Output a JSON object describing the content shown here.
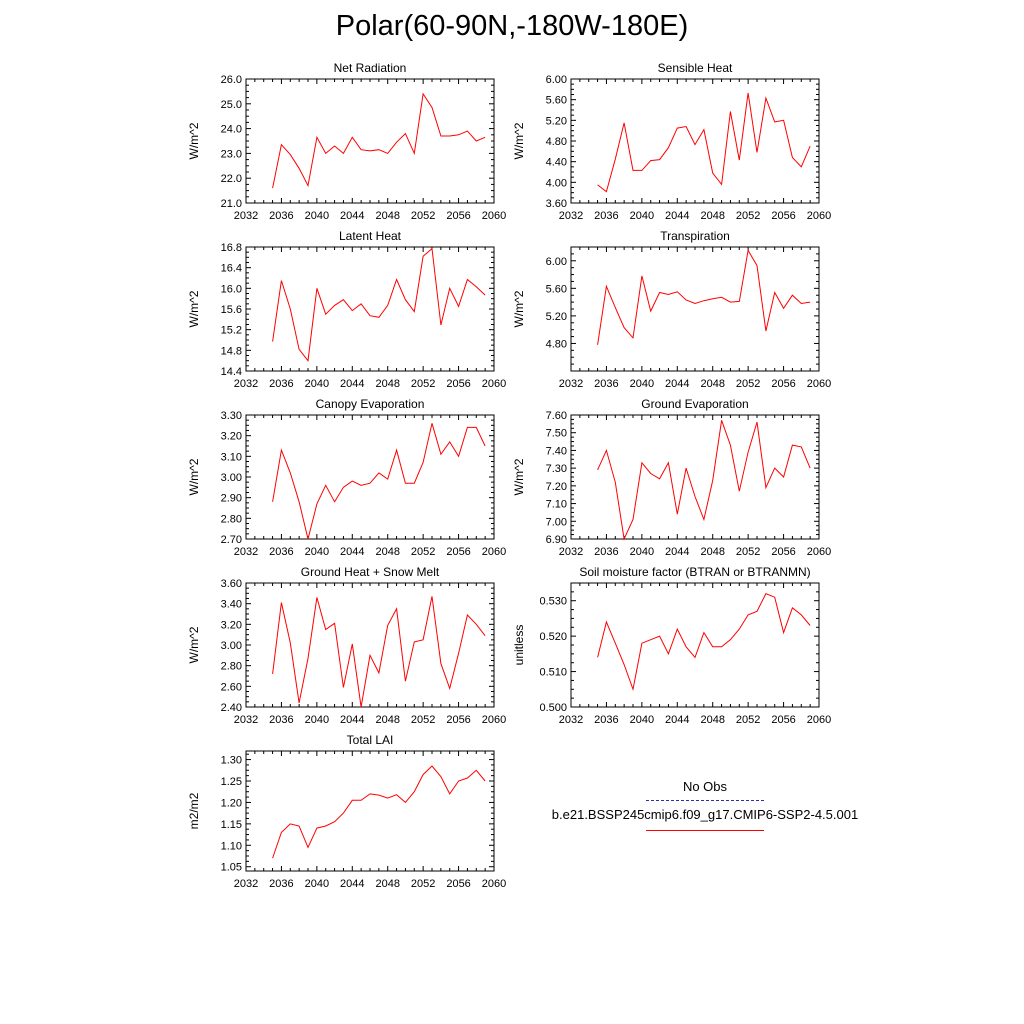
{
  "figure_title": "Polar(60-90N,-180W-180E)",
  "legend": {
    "obs_label": "No Obs",
    "obs_color": "#2b2bb8",
    "run_label": "b.e21.BSSP245cmip6.f09_g17.CMIP6-SSP2-4.5.001",
    "run_color": "#ff0000"
  },
  "chart_data": [
    {
      "type": "line",
      "title": "Net Radiation",
      "ylabel": "W/m^2",
      "xlim": [
        2032,
        2060
      ],
      "ylim": [
        21.0,
        26.0
      ],
      "xticks": [
        "2032",
        "2036",
        "2040",
        "2044",
        "2048",
        "2052",
        "2056",
        "2060"
      ],
      "yticks": [
        "21.0",
        "22.0",
        "23.0",
        "24.0",
        "25.0",
        "26.0"
      ],
      "x": [
        2035,
        2036,
        2037,
        2038,
        2039,
        2040,
        2041,
        2042,
        2043,
        2044,
        2045,
        2046,
        2047,
        2048,
        2049,
        2050,
        2051,
        2052,
        2053,
        2054,
        2055,
        2056,
        2057,
        2058,
        2059
      ],
      "series": [
        {
          "values": [
            21.6,
            23.35,
            22.95,
            22.4,
            21.7,
            23.65,
            23.0,
            23.3,
            23.0,
            23.65,
            23.15,
            23.1,
            23.15,
            23.0,
            23.45,
            23.8,
            23.0,
            25.4,
            24.85,
            23.7,
            23.7,
            23.75,
            23.9,
            23.5,
            23.65
          ]
        }
      ]
    },
    {
      "type": "line",
      "title": "Sensible Heat",
      "ylabel": "W/m^2",
      "xlim": [
        2032,
        2060
      ],
      "ylim": [
        3.6,
        6.0
      ],
      "xticks": [
        "2032",
        "2036",
        "2040",
        "2044",
        "2048",
        "2052",
        "2056",
        "2060"
      ],
      "yticks": [
        "3.60",
        "4.00",
        "4.40",
        "4.80",
        "5.20",
        "5.60",
        "6.00"
      ],
      "x": [
        2035,
        2036,
        2037,
        2038,
        2039,
        2040,
        2041,
        2042,
        2043,
        2044,
        2045,
        2046,
        2047,
        2048,
        2049,
        2050,
        2051,
        2052,
        2053,
        2054,
        2055,
        2056,
        2057,
        2058,
        2059
      ],
      "series": [
        {
          "values": [
            3.95,
            3.82,
            4.45,
            5.15,
            4.23,
            4.23,
            4.42,
            4.44,
            4.67,
            5.05,
            5.08,
            4.73,
            5.02,
            4.18,
            3.96,
            5.37,
            4.43,
            5.73,
            4.58,
            5.63,
            5.17,
            5.2,
            4.48,
            4.3,
            4.7
          ]
        }
      ]
    },
    {
      "type": "line",
      "title": "Latent Heat",
      "ylabel": "W/m^2",
      "xlim": [
        2032,
        2060
      ],
      "ylim": [
        14.4,
        16.8
      ],
      "xticks": [
        "2032",
        "2036",
        "2040",
        "2044",
        "2048",
        "2052",
        "2056",
        "2060"
      ],
      "yticks": [
        "14.4",
        "14.8",
        "15.2",
        "15.6",
        "16.0",
        "16.4",
        "16.8"
      ],
      "x": [
        2035,
        2036,
        2037,
        2038,
        2039,
        2040,
        2041,
        2042,
        2043,
        2044,
        2045,
        2046,
        2047,
        2048,
        2049,
        2050,
        2051,
        2052,
        2053,
        2054,
        2055,
        2056,
        2057,
        2058,
        2059
      ],
      "series": [
        {
          "values": [
            14.97,
            16.15,
            15.6,
            14.82,
            14.6,
            16.0,
            15.5,
            15.67,
            15.78,
            15.57,
            15.7,
            15.47,
            15.44,
            15.67,
            16.17,
            15.78,
            15.55,
            16.62,
            16.77,
            15.29,
            16.0,
            15.65,
            16.17,
            16.03,
            15.87
          ]
        }
      ]
    },
    {
      "type": "line",
      "title": "Transpiration",
      "ylabel": "W/m^2",
      "xlim": [
        2032,
        2060
      ],
      "ylim": [
        4.4,
        6.2
      ],
      "xticks": [
        "2032",
        "2036",
        "2040",
        "2044",
        "2048",
        "2052",
        "2056",
        "2060"
      ],
      "yticks": [
        "4.80",
        "5.20",
        "5.60",
        "6.00"
      ],
      "x": [
        2035,
        2036,
        2037,
        2038,
        2039,
        2040,
        2041,
        2042,
        2043,
        2044,
        2045,
        2046,
        2047,
        2048,
        2049,
        2050,
        2051,
        2052,
        2053,
        2054,
        2055,
        2056,
        2057,
        2058,
        2059
      ],
      "series": [
        {
          "values": [
            4.78,
            5.63,
            5.32,
            5.03,
            4.88,
            5.78,
            5.27,
            5.54,
            5.51,
            5.55,
            5.43,
            5.38,
            5.42,
            5.45,
            5.47,
            5.4,
            5.41,
            6.15,
            5.93,
            4.98,
            5.54,
            5.31,
            5.5,
            5.38,
            5.4
          ]
        }
      ]
    },
    {
      "type": "line",
      "title": "Canopy Evaporation",
      "ylabel": "W/m^2",
      "xlim": [
        2032,
        2060
      ],
      "ylim": [
        2.7,
        3.3
      ],
      "xticks": [
        "2032",
        "2036",
        "2040",
        "2044",
        "2048",
        "2052",
        "2056",
        "2060"
      ],
      "yticks": [
        "2.70",
        "2.80",
        "2.90",
        "3.00",
        "3.10",
        "3.20",
        "3.30"
      ],
      "x": [
        2035,
        2036,
        2037,
        2038,
        2039,
        2040,
        2041,
        2042,
        2043,
        2044,
        2045,
        2046,
        2047,
        2048,
        2049,
        2050,
        2051,
        2052,
        2053,
        2054,
        2055,
        2056,
        2057,
        2058,
        2059
      ],
      "series": [
        {
          "values": [
            2.88,
            3.13,
            3.02,
            2.88,
            2.7,
            2.87,
            2.96,
            2.88,
            2.95,
            2.98,
            2.96,
            2.97,
            3.02,
            2.99,
            3.13,
            2.97,
            2.97,
            3.07,
            3.26,
            3.11,
            3.17,
            3.1,
            3.24,
            3.24,
            3.15
          ]
        }
      ]
    },
    {
      "type": "line",
      "title": "Ground Evaporation",
      "ylabel": "W/m^2",
      "xlim": [
        2032,
        2060
      ],
      "ylim": [
        6.9,
        7.6
      ],
      "xticks": [
        "2032",
        "2036",
        "2040",
        "2044",
        "2048",
        "2052",
        "2056",
        "2060"
      ],
      "yticks": [
        "6.90",
        "7.00",
        "7.10",
        "7.20",
        "7.30",
        "7.40",
        "7.50",
        "7.60"
      ],
      "x": [
        2035,
        2036,
        2037,
        2038,
        2039,
        2040,
        2041,
        2042,
        2043,
        2044,
        2045,
        2046,
        2047,
        2048,
        2049,
        2050,
        2051,
        2052,
        2053,
        2054,
        2055,
        2056,
        2057,
        2058,
        2059
      ],
      "series": [
        {
          "values": [
            7.29,
            7.4,
            7.22,
            6.9,
            7.01,
            7.33,
            7.27,
            7.24,
            7.33,
            7.04,
            7.3,
            7.14,
            7.01,
            7.23,
            7.57,
            7.43,
            7.17,
            7.39,
            7.56,
            7.19,
            7.3,
            7.25,
            7.43,
            7.42,
            7.3
          ]
        }
      ]
    },
    {
      "type": "line",
      "title": "Ground Heat + Snow Melt",
      "ylabel": "W/m^2",
      "xlim": [
        2032,
        2060
      ],
      "ylim": [
        2.4,
        3.6
      ],
      "xticks": [
        "2032",
        "2036",
        "2040",
        "2044",
        "2048",
        "2052",
        "2056",
        "2060"
      ],
      "yticks": [
        "2.40",
        "2.60",
        "2.80",
        "3.00",
        "3.20",
        "3.40",
        "3.60"
      ],
      "x": [
        2035,
        2036,
        2037,
        2038,
        2039,
        2040,
        2041,
        2042,
        2043,
        2044,
        2045,
        2046,
        2047,
        2048,
        2049,
        2050,
        2051,
        2052,
        2053,
        2054,
        2055,
        2056,
        2057,
        2058,
        2059
      ],
      "series": [
        {
          "values": [
            2.72,
            3.41,
            3.02,
            2.44,
            2.87,
            3.46,
            3.15,
            3.21,
            2.59,
            3.01,
            2.4,
            2.9,
            2.73,
            3.19,
            3.35,
            2.65,
            3.03,
            3.05,
            3.47,
            2.82,
            2.58,
            2.92,
            3.29,
            3.2,
            3.09
          ]
        }
      ]
    },
    {
      "type": "line",
      "title": "Soil moisture factor (BTRAN or BTRANMN)",
      "ylabel": "unitless",
      "xlim": [
        2032,
        2060
      ],
      "ylim": [
        0.5,
        0.535
      ],
      "xticks": [
        "2032",
        "2036",
        "2040",
        "2044",
        "2048",
        "2052",
        "2056",
        "2060"
      ],
      "yticks": [
        "0.500",
        "0.510",
        "0.520",
        "0.530"
      ],
      "x": [
        2035,
        2036,
        2037,
        2038,
        2039,
        2040,
        2041,
        2042,
        2043,
        2044,
        2045,
        2046,
        2047,
        2048,
        2049,
        2050,
        2051,
        2052,
        2053,
        2054,
        2055,
        2056,
        2057,
        2058,
        2059
      ],
      "series": [
        {
          "values": [
            0.514,
            0.524,
            0.518,
            0.512,
            0.505,
            0.518,
            0.519,
            0.52,
            0.515,
            0.522,
            0.517,
            0.514,
            0.521,
            0.517,
            0.517,
            0.519,
            0.522,
            0.526,
            0.527,
            0.532,
            0.531,
            0.521,
            0.528,
            0.526,
            0.523
          ]
        }
      ]
    },
    {
      "type": "line",
      "title": "Total LAI",
      "ylabel": "m2/m2",
      "xlim": [
        2032,
        2060
      ],
      "ylim": [
        1.04,
        1.32
      ],
      "xticks": [
        "2032",
        "2036",
        "2040",
        "2044",
        "2048",
        "2052",
        "2056",
        "2060"
      ],
      "yticks": [
        "1.05",
        "1.10",
        "1.15",
        "1.20",
        "1.25",
        "1.30"
      ],
      "x": [
        2035,
        2036,
        2037,
        2038,
        2039,
        2040,
        2041,
        2042,
        2043,
        2044,
        2045,
        2046,
        2047,
        2048,
        2049,
        2050,
        2051,
        2052,
        2053,
        2054,
        2055,
        2056,
        2057,
        2058,
        2059
      ],
      "series": [
        {
          "values": [
            1.07,
            1.13,
            1.15,
            1.145,
            1.095,
            1.14,
            1.145,
            1.155,
            1.175,
            1.205,
            1.205,
            1.22,
            1.217,
            1.21,
            1.218,
            1.2,
            1.225,
            1.265,
            1.285,
            1.26,
            1.22,
            1.25,
            1.257,
            1.275,
            1.25
          ]
        }
      ]
    }
  ]
}
